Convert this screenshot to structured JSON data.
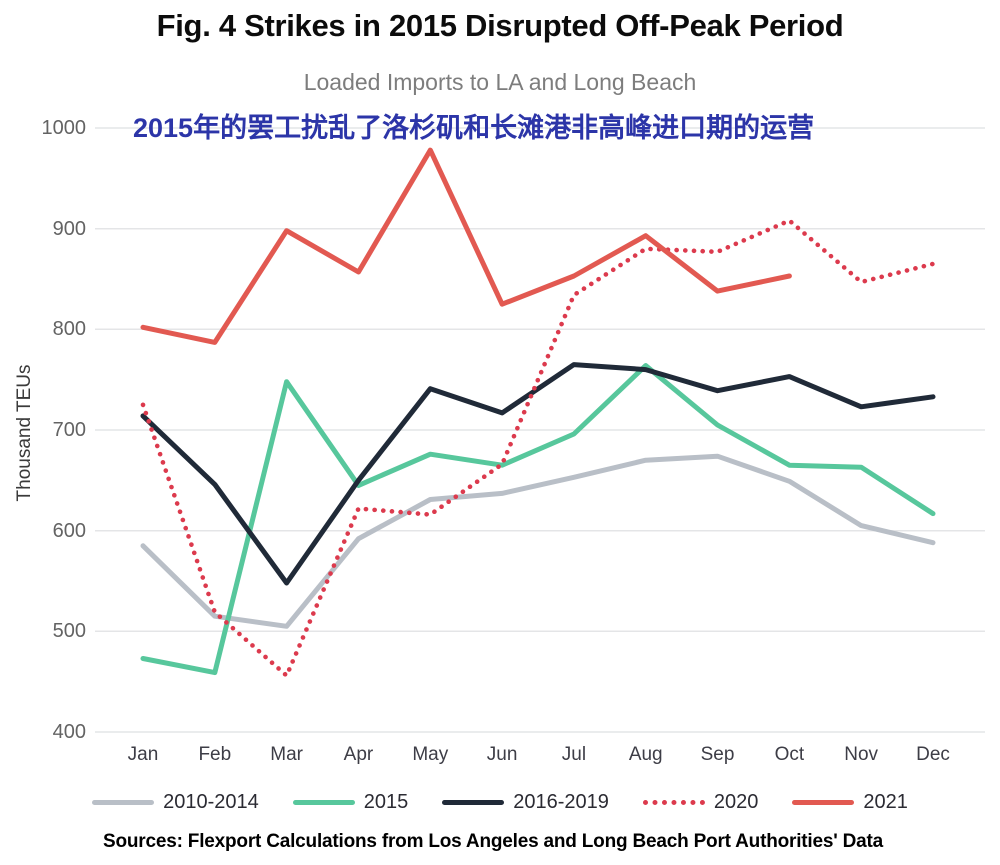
{
  "title": "Fig. 4 Strikes in 2015 Disrupted Off-Peak Period",
  "subtitle": "Loaded Imports to LA and Long Beach",
  "annotation_zh": "2015年的罢工扰乱了洛杉矶和长滩港非高峰进口期的运营",
  "annotation_color": "#2c35a8",
  "source": "Sources: Flexport Calculations from Los Angeles and Long Beach Port Authorities' Data",
  "chart_data": {
    "type": "line",
    "title": "Loaded Imports to LA and Long Beach",
    "ylabel": "Thousand TEUs",
    "xlabel": "",
    "ylim": [
      400,
      1000
    ],
    "yticks": [
      1000,
      900,
      800,
      700,
      600,
      500,
      400
    ],
    "grid": true,
    "legend_position": "bottom",
    "categories": [
      "Jan",
      "Feb",
      "Mar",
      "Apr",
      "May",
      "Jun",
      "Jul",
      "Aug",
      "Sep",
      "Oct",
      "Nov",
      "Dec"
    ],
    "series": [
      {
        "name": "2010-2014",
        "color": "#b9bfc7",
        "style": "solid",
        "values": [
          585,
          515,
          505,
          592,
          631,
          637,
          653,
          670,
          674,
          649,
          605,
          588
        ]
      },
      {
        "name": "2015",
        "color": "#57c79c",
        "style": "solid",
        "values": [
          473,
          459,
          748,
          645,
          676,
          665,
          696,
          764,
          705,
          665,
          663,
          617
        ]
      },
      {
        "name": "2016-2019",
        "color": "#202a38",
        "style": "solid",
        "values": [
          714,
          646,
          548,
          650,
          741,
          717,
          765,
          760,
          739,
          753,
          723,
          733
        ]
      },
      {
        "name": "2020",
        "color": "#dc3a4d",
        "style": "dotted",
        "values": [
          725,
          519,
          456,
          622,
          616,
          666,
          834,
          880,
          877,
          908,
          847,
          865
        ]
      },
      {
        "name": "2021",
        "color": "#e25951",
        "style": "solid",
        "values": [
          802,
          787,
          898,
          857,
          978,
          825,
          853,
          893,
          838,
          853,
          null,
          null
        ]
      }
    ]
  }
}
